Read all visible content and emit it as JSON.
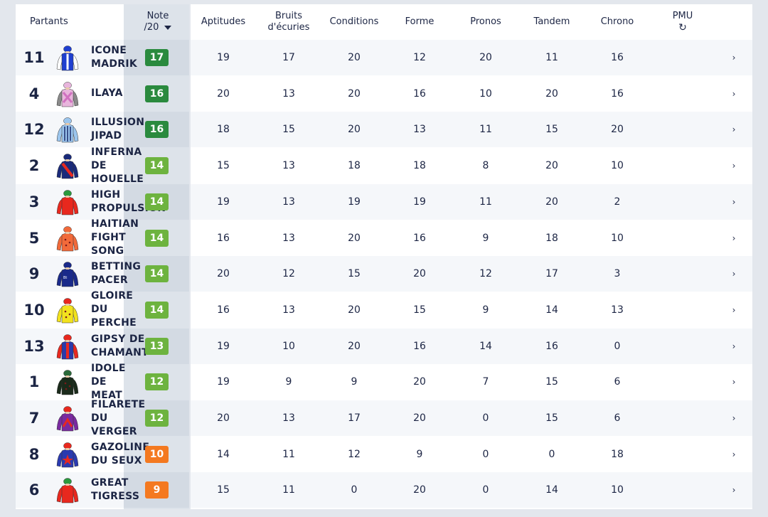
{
  "header": {
    "partants": "Partants",
    "note_line1": "Note",
    "note_line2": "/20",
    "aptitudes": "Aptitudes",
    "bruits_line1": "Bruits",
    "bruits_line2": "d'écuries",
    "conditions": "Conditions",
    "forme": "Forme",
    "pronos": "Pronos",
    "tandem": "Tandem",
    "chrono": "Chrono",
    "pmu": "PMU",
    "refresh_icon": "↻"
  },
  "colors": {
    "dark_green": "#2a8a3e",
    "light_green": "#6db33f",
    "orange": "#f47920"
  },
  "rows": [
    {
      "num": "11",
      "name": [
        "ICONE",
        "MADRIK"
      ],
      "note": "17",
      "badge": "dark_green",
      "jockey": {
        "body": "#1f3fd0",
        "sleeves": "#ffffff",
        "cap": "#1f3fd0",
        "motif": "white-stripe"
      },
      "aptitudes": "19",
      "bruits": "17",
      "conditions": "20",
      "forme": "12",
      "pronos": "20",
      "tandem": "11",
      "chrono": "16"
    },
    {
      "num": "4",
      "name": [
        "ILAYA"
      ],
      "note": "16",
      "badge": "dark_green",
      "jockey": {
        "body": "#e8b5dc",
        "sleeves": "#8a8a8a",
        "cap": "#e8b5dc",
        "motif": "cross"
      },
      "aptitudes": "20",
      "bruits": "13",
      "conditions": "20",
      "forme": "16",
      "pronos": "10",
      "tandem": "20",
      "chrono": "16"
    },
    {
      "num": "12",
      "name": [
        "ILLUSION",
        "JIPAD"
      ],
      "note": "16",
      "badge": "dark_green",
      "jockey": {
        "body": "#9cc6ee",
        "sleeves": "#9cc6ee",
        "cap": "#9cc6ee",
        "motif": "stripes"
      },
      "aptitudes": "18",
      "bruits": "15",
      "conditions": "20",
      "forme": "13",
      "pronos": "11",
      "tandem": "15",
      "chrono": "20"
    },
    {
      "num": "2",
      "name": [
        "INFERNA",
        "DE",
        "HOUELLE"
      ],
      "note": "14",
      "badge": "light_green",
      "jockey": {
        "body": "#1a2a7a",
        "sleeves": "#1a2a7a",
        "cap": "#1a2a7a",
        "motif": "red-sash"
      },
      "aptitudes": "15",
      "bruits": "13",
      "conditions": "18",
      "forme": "18",
      "pronos": "8",
      "tandem": "20",
      "chrono": "10"
    },
    {
      "num": "3",
      "name": [
        "HIGH",
        "PROPULSION"
      ],
      "note": "14",
      "badge": "light_green",
      "jockey": {
        "body": "#e8281e",
        "sleeves": "#e8281e",
        "cap": "#2a9a3e",
        "motif": "none"
      },
      "aptitudes": "19",
      "bruits": "13",
      "conditions": "19",
      "forme": "19",
      "pronos": "11",
      "tandem": "20",
      "chrono": "2"
    },
    {
      "num": "5",
      "name": [
        "HAITIAN",
        "FIGHT",
        "SONG"
      ],
      "note": "14",
      "badge": "light_green",
      "jockey": {
        "body": "#f26a3a",
        "sleeves": "#f26a3a",
        "cap": "#f26a3a",
        "motif": "dots"
      },
      "aptitudes": "16",
      "bruits": "13",
      "conditions": "20",
      "forme": "16",
      "pronos": "9",
      "tandem": "18",
      "chrono": "10"
    },
    {
      "num": "9",
      "name": [
        "BETTING",
        "PACER"
      ],
      "note": "14",
      "badge": "light_green",
      "jockey": {
        "body": "#1a2a8a",
        "sleeves": "#1a2a8a",
        "cap": "#1a2a8a",
        "motif": "logo"
      },
      "aptitudes": "20",
      "bruits": "12",
      "conditions": "15",
      "forme": "20",
      "pronos": "12",
      "tandem": "17",
      "chrono": "3"
    },
    {
      "num": "10",
      "name": [
        "GLOIRE",
        "DU",
        "PERCHE"
      ],
      "note": "14",
      "badge": "light_green",
      "jockey": {
        "body": "#f2e21e",
        "sleeves": "#f2e21e",
        "cap": "#e8281e",
        "motif": "dots"
      },
      "aptitudes": "16",
      "bruits": "13",
      "conditions": "20",
      "forme": "15",
      "pronos": "9",
      "tandem": "14",
      "chrono": "13"
    },
    {
      "num": "13",
      "name": [
        "GIPSY DE",
        "CHAMANT"
      ],
      "note": "13",
      "badge": "light_green",
      "jockey": {
        "body": "#2a3aaa",
        "sleeves": "#e8281e",
        "cap": "#e8281e",
        "motif": "red-stripe"
      },
      "aptitudes": "19",
      "bruits": "10",
      "conditions": "20",
      "forme": "16",
      "pronos": "14",
      "tandem": "16",
      "chrono": "0"
    },
    {
      "num": "1",
      "name": [
        "IDOLE",
        "DE",
        "MEAT"
      ],
      "note": "12",
      "badge": "light_green",
      "jockey": {
        "body": "#1a2a1a",
        "sleeves": "#1a2a1a",
        "cap": "#2a6a3a",
        "motif": "dots"
      },
      "aptitudes": "19",
      "bruits": "9",
      "conditions": "9",
      "forme": "20",
      "pronos": "7",
      "tandem": "15",
      "chrono": "6"
    },
    {
      "num": "7",
      "name": [
        "FILARETE",
        "DU",
        "VERGER"
      ],
      "note": "12",
      "badge": "light_green",
      "jockey": {
        "body": "#7a2aa0",
        "sleeves": "#7a2aa0",
        "cap": "#e8281e",
        "motif": "red-chevron"
      },
      "aptitudes": "20",
      "bruits": "13",
      "conditions": "17",
      "forme": "20",
      "pronos": "0",
      "tandem": "15",
      "chrono": "6"
    },
    {
      "num": "8",
      "name": [
        "GAZOLINE",
        "DU SEUX"
      ],
      "note": "10",
      "badge": "orange",
      "jockey": {
        "body": "#2a3ab0",
        "sleeves": "#2a3ab0",
        "cap": "#e8281e",
        "motif": "red-star"
      },
      "aptitudes": "14",
      "bruits": "11",
      "conditions": "12",
      "forme": "9",
      "pronos": "0",
      "tandem": "0",
      "chrono": "18"
    },
    {
      "num": "6",
      "name": [
        "GREAT",
        "TIGRESS"
      ],
      "note": "9",
      "badge": "orange",
      "jockey": {
        "body": "#e8281e",
        "sleeves": "#e8281e",
        "cap": "#2a9a3e",
        "motif": "none"
      },
      "aptitudes": "15",
      "bruits": "11",
      "conditions": "0",
      "forme": "20",
      "pronos": "0",
      "tandem": "14",
      "chrono": "10"
    }
  ]
}
